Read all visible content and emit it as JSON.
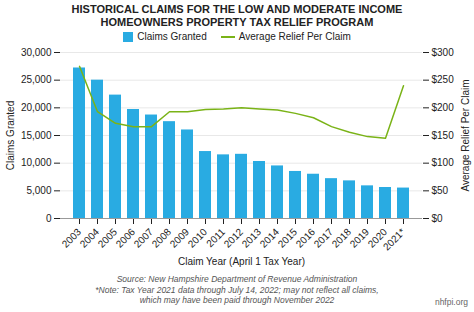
{
  "chart_data": {
    "type": "bar",
    "title": "HISTORICAL CLAIMS FOR THE LOW AND MODERATE INCOME\nHOMEOWNERS PROPERTY TAX RELIEF PROGRAM",
    "xlabel": "Claim Year (April 1 Tax Year)",
    "ylabel": "Claims Granted",
    "y2label": "Average Relief Per Claim",
    "categories": [
      "2003",
      "2004",
      "2005",
      "2006",
      "2007",
      "2008",
      "2009",
      "2010",
      "2011",
      "2012",
      "2013",
      "2014",
      "2015",
      "2016",
      "2017",
      "2018",
      "2019",
      "2020",
      "2021*"
    ],
    "series": [
      {
        "name": "Claims Granted",
        "type": "bar",
        "color": "#29ABE2",
        "values": [
          27200,
          25000,
          22300,
          19700,
          18700,
          17500,
          16000,
          12100,
          11500,
          11600,
          10300,
          9500,
          8500,
          8000,
          7200,
          6800,
          5900,
          5600,
          5500
        ]
      },
      {
        "name": "Average Relief Per Claim",
        "type": "line",
        "axis": "y2",
        "color": "#7AB317",
        "values": [
          275,
          193,
          172,
          166,
          166,
          193,
          193,
          197,
          198,
          200,
          198,
          196,
          190,
          182,
          166,
          156,
          148,
          145,
          240
        ]
      }
    ],
    "ylim": [
      0,
      30000
    ],
    "yticks": [
      0,
      {
        "value": 5000,
        "label": "5,000"
      },
      {
        "value": 10000,
        "label": "10,000"
      },
      {
        "value": 15000,
        "label": "15,000"
      },
      {
        "value": 20000,
        "label": "20,000"
      },
      {
        "value": 25000,
        "label": "25,000"
      },
      {
        "value": 30000,
        "label": "30,000"
      }
    ],
    "y2lim": [
      0,
      300
    ],
    "y2ticks": [
      {
        "value": 0,
        "label": "$0"
      },
      {
        "value": 50,
        "label": "$50"
      },
      {
        "value": 100,
        "label": "$100"
      },
      {
        "value": 150,
        "label": "$150"
      },
      {
        "value": 200,
        "label": "$200"
      },
      {
        "value": 250,
        "label": "$250"
      },
      {
        "value": 300,
        "label": "$300"
      }
    ],
    "grid": true,
    "legend": "top",
    "annotations": [
      "Source: New Hampshire Department of Revenue Administration\n*Note: Tax Year 2021 data through July 14, 2022; may not reflect all claims,\nwhich may have been paid through November 2022",
      "nhfpi.org"
    ]
  }
}
